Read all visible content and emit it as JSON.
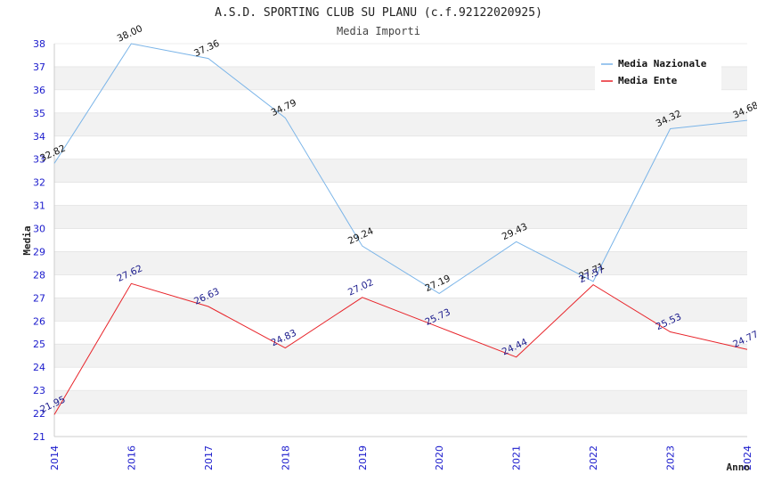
{
  "chart_data": {
    "type": "line",
    "title": "A.S.D. SPORTING CLUB SU PLANU (c.f.92122020925)",
    "subtitle": "Media Importi",
    "xlabel": "Anno",
    "ylabel": "Media",
    "categories": [
      "2014",
      "2016",
      "2017",
      "2018",
      "2019",
      "2020",
      "2021",
      "2022",
      "2023",
      "2024"
    ],
    "ylim": [
      21,
      38
    ],
    "yticks": [
      21,
      22,
      23,
      24,
      25,
      26,
      27,
      28,
      29,
      30,
      31,
      32,
      33,
      34,
      35,
      36,
      37,
      38
    ],
    "legend_position": "top-right",
    "series": [
      {
        "name": "Media Nazionale",
        "color": "#7ab4e8",
        "label_color": "#111111",
        "values": [
          32.82,
          38.0,
          37.36,
          34.79,
          29.24,
          27.19,
          29.43,
          27.71,
          34.32,
          34.68
        ],
        "labels": [
          "32.82",
          "38.00",
          "37.36",
          "34.79",
          "29.24",
          "27.19",
          "29.43",
          "27.71",
          "34.32",
          "34.68"
        ]
      },
      {
        "name": "Media Ente",
        "color": "#e8242a",
        "label_color": "#1a1a8c",
        "values": [
          21.95,
          27.62,
          26.63,
          24.83,
          27.02,
          25.73,
          24.44,
          27.57,
          25.53,
          24.77
        ],
        "labels": [
          "21.95",
          "27.62",
          "26.63",
          "24.83",
          "27.02",
          "25.73",
          "24.44",
          "27.57",
          "25.53",
          "24.77"
        ]
      }
    ],
    "colors": {
      "tick_text": "#1a1acc",
      "grid_band": "#f2f2f2",
      "grid_line": "#dddddd"
    }
  }
}
